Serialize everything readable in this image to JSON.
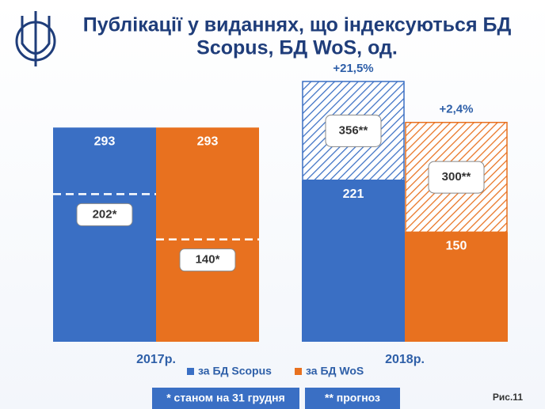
{
  "chart_data": {
    "type": "bar",
    "title": [
      "Публікації у виданнях, що індексуються БД",
      "Scopus, БД WoS, од."
    ],
    "categories": [
      "2017р.",
      "2018р."
    ],
    "series": [
      {
        "name": "за БД Scopus",
        "color": "#3a6fc4",
        "values": [
          293,
          221
        ],
        "markers": [
          202,
          null
        ],
        "marker_labels": [
          "202*",
          null
        ],
        "forecast": [
          null,
          356
        ],
        "forecast_labels": [
          null,
          "356**"
        ],
        "growth_labels": [
          null,
          "+21,5%"
        ]
      },
      {
        "name": "за БД WoS",
        "color": "#e8711f",
        "values": [
          293,
          150
        ],
        "markers": [
          140,
          null
        ],
        "marker_labels": [
          "140*",
          null
        ],
        "forecast": [
          null,
          300
        ],
        "forecast_labels": [
          null,
          "300**"
        ],
        "growth_labels": [
          null,
          "+2,4%"
        ]
      }
    ],
    "notes": [
      "* станом на 31 грудня",
      "** прогноз"
    ],
    "figure": "Рис.11"
  }
}
